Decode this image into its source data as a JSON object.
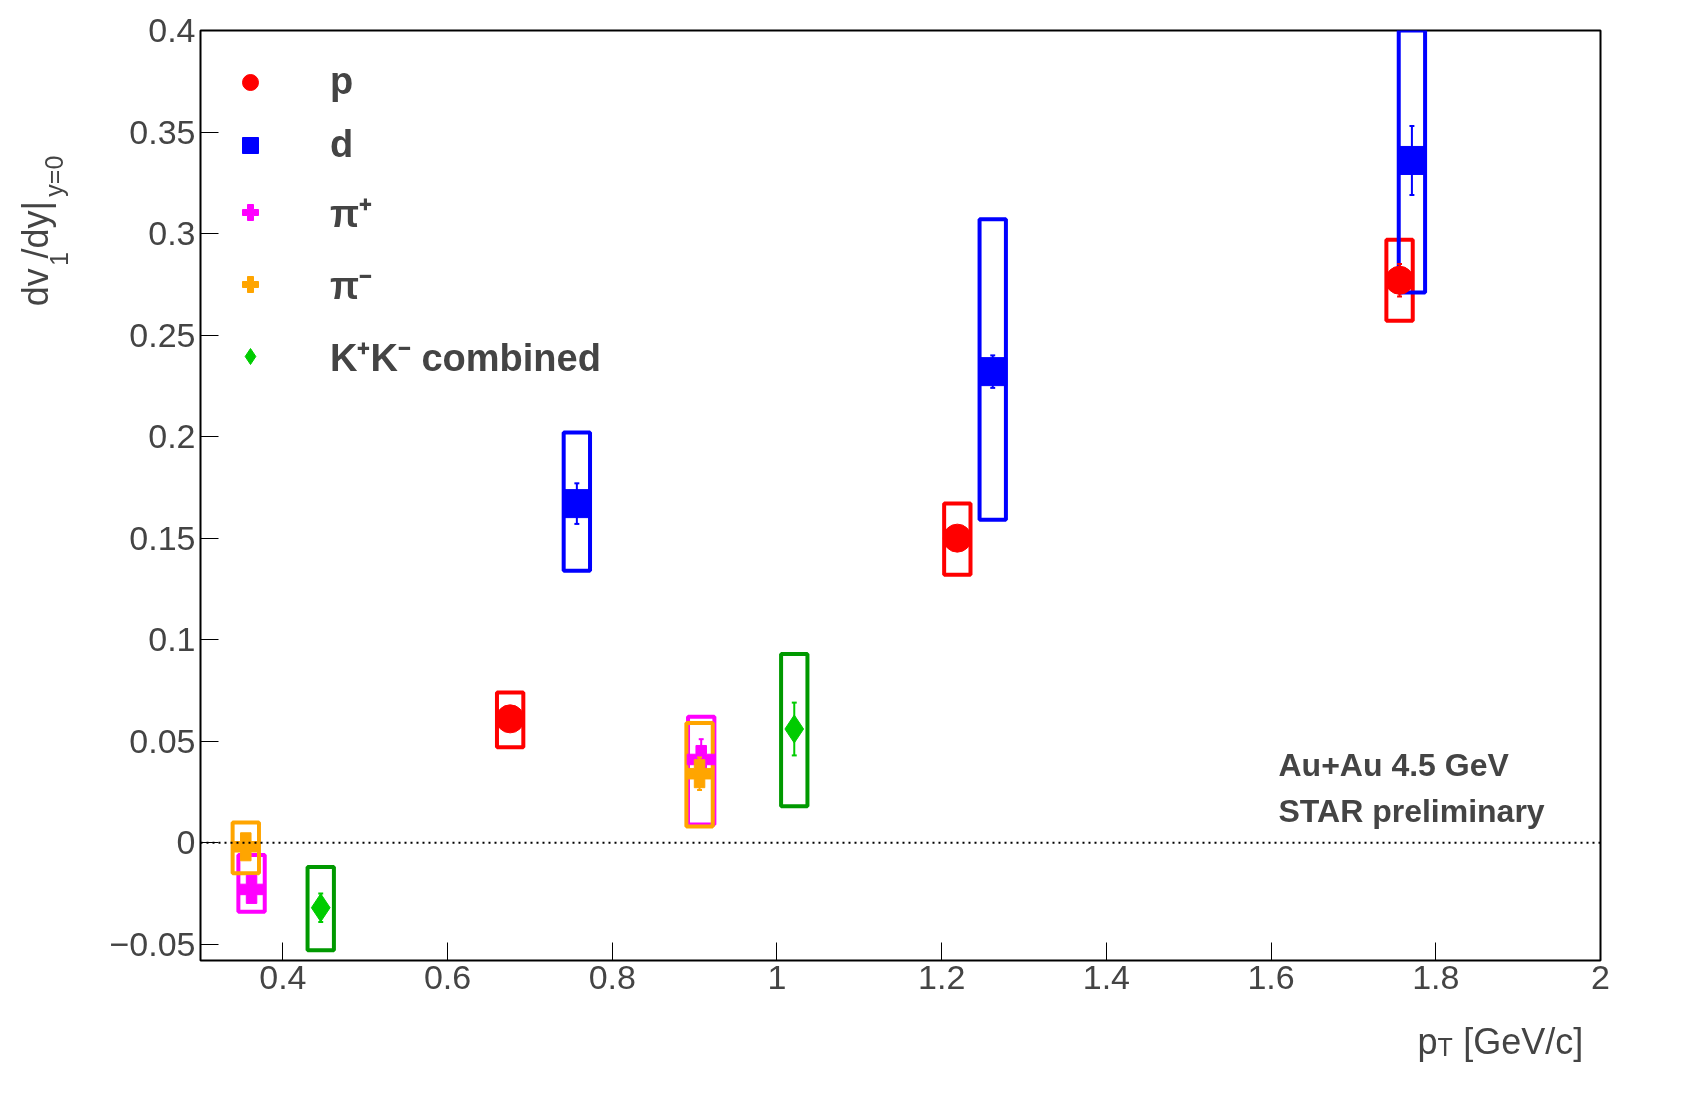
{
  "chart_data": {
    "type": "scatter",
    "xlabel": "p$_{T}$ [GeV/c]",
    "ylabel": "dv$_{1}$/dy|$_{y=0}$",
    "xlim": [
      0.3,
      2.0
    ],
    "ylim": [
      -0.058,
      0.4
    ],
    "xticks": [
      0.4,
      0.6,
      0.8,
      1,
      1.2,
      1.4,
      1.6,
      1.8,
      2
    ],
    "yticks": [
      {
        "value": -0.05,
        "label": "−0.05"
      },
      0,
      0.05,
      0.1,
      0.15,
      0.2,
      0.25,
      0.3,
      0.35,
      0.4
    ],
    "grid": false,
    "legend": "top left",
    "ref_lines": [
      {
        "axis": "y",
        "value": 0,
        "line_style": "dotted",
        "color": "#000000"
      }
    ],
    "annotations": [
      "Au+Au 4.5 GeV",
      "STAR preliminary"
    ],
    "series": [
      {
        "name": "p",
        "color": "#ff0000",
        "marker": "circle",
        "x": [
          0.676,
          1.219,
          1.756
        ],
        "values": [
          0.061,
          0.15,
          0.277
        ],
        "errors": [
          0.004,
          0.004,
          0.008
        ]
      },
      {
        "name": "d",
        "color": "#0000ff",
        "marker": "square",
        "x": [
          0.757,
          1.262,
          1.771
        ],
        "values": [
          0.167,
          0.232,
          0.336
        ],
        "errors": [
          0.01,
          0.008,
          0.017
        ]
      },
      {
        "name": "π⁺",
        "color": "#ff00ff",
        "marker": "cross",
        "x": [
          0.362,
          0.908
        ],
        "values": [
          -0.023,
          0.041
        ],
        "errors": [
          0.005,
          0.01
        ]
      },
      {
        "name": "π⁻",
        "color": "#ffa500",
        "marker": "cross",
        "x": [
          0.355,
          0.906
        ],
        "values": [
          -0.002,
          0.034
        ],
        "errors": [
          0.005,
          0.008
        ]
      },
      {
        "name": "K⁺K⁻ combined",
        "color": "#00cc00",
        "marker": "diamond",
        "x": [
          0.446,
          1.021
        ],
        "values": [
          -0.032,
          0.056
        ],
        "errors": [
          0.007,
          0.013
        ]
      },
      {
        "type": "bar",
        "color": "#ff0000",
        "x": [
          0.676,
          1.219,
          1.756
        ],
        "base": [
          0.047,
          0.132,
          0.257
        ],
        "values": [
          0.027,
          0.035,
          0.04
        ]
      },
      {
        "type": "bar",
        "color": "#0000ff",
        "x": [
          0.757,
          1.262,
          1.771
        ],
        "base": [
          0.134,
          0.159,
          0.271
        ],
        "values": [
          0.068,
          0.148,
          0.129
        ]
      },
      {
        "type": "bar",
        "color": "#ff00ff",
        "x": [
          0.362,
          0.908
        ],
        "base": [
          -0.034,
          0.009
        ],
        "values": [
          0.028,
          0.053
        ]
      },
      {
        "type": "bar",
        "color": "#ffa500",
        "x": [
          0.355,
          0.906
        ],
        "base": [
          -0.015,
          0.008
        ],
        "values": [
          0.025,
          0.051
        ]
      },
      {
        "type": "bar",
        "color": "#009900",
        "x": [
          0.446,
          1.021
        ],
        "base": [
          -0.053,
          0.018
        ],
        "values": [
          0.041,
          0.075
        ]
      }
    ]
  }
}
